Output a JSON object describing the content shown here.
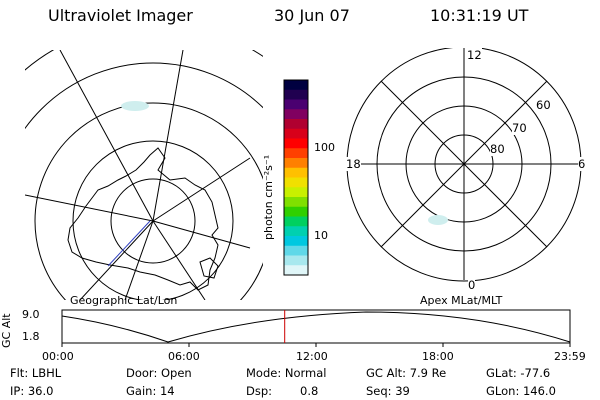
{
  "header": {
    "title": "Ultraviolet Imager",
    "date": "30 Jun 07",
    "time": "10:31:19 UT"
  },
  "colorbar": {
    "unit_label": "photon cm⁻²s⁻¹",
    "ticks": [
      "100",
      "10"
    ],
    "colors": [
      "#000040",
      "#200050",
      "#4a0070",
      "#800060",
      "#b00030",
      "#d8001a",
      "#ff0000",
      "#ff4000",
      "#ff8000",
      "#ffc000",
      "#f0e000",
      "#c8f000",
      "#80e000",
      "#30d000",
      "#00d060",
      "#00d0b0",
      "#00c8e0",
      "#60d8e8",
      "#a8e8ee",
      "#e0f6f8"
    ]
  },
  "left_panel": {
    "caption": "Geographic Lat/Lon"
  },
  "right_panel": {
    "caption": "Apex MLat/MLT",
    "mlt_labels": {
      "top": "12",
      "left": "18",
      "right": "6",
      "bottom": "0"
    },
    "lat_labels": [
      "60",
      "70",
      "80"
    ]
  },
  "timeline": {
    "ylabel": "GC Alt",
    "yticks": [
      "9.0",
      "1.8"
    ],
    "xticks": [
      "00:00",
      "06:00",
      "12:00",
      "18:00",
      "23:59"
    ],
    "current_marker_hours": 10.52,
    "marker_color": "#cc0000"
  },
  "info": {
    "row1": {
      "filter": "Flt: LBHL",
      "door": "Door: Open",
      "mode": "Mode: Normal",
      "gc_alt": "GC Alt: 7.9 Re",
      "glat": "GLat: -77.6"
    },
    "row2": {
      "ip": "IP: 36.0",
      "gain": "Gain: 14",
      "dsp_label": "Dsp:",
      "dsp_value": "0.8",
      "seq": "Seq: 39",
      "glon": "GLon: 146.0"
    }
  }
}
